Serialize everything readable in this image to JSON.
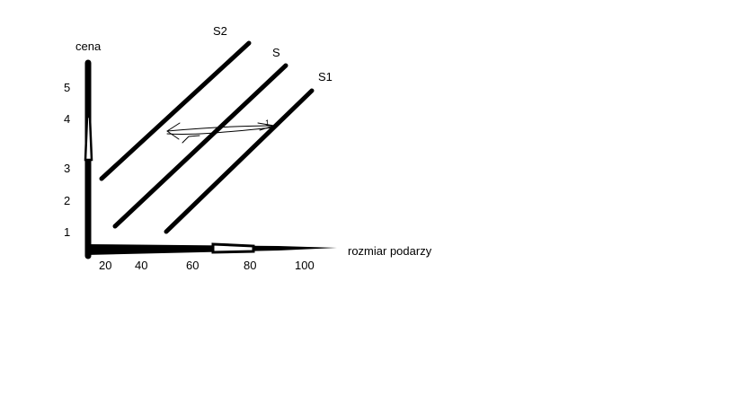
{
  "y_axis": {
    "label": "cena",
    "ticks": [
      "5",
      "4",
      "3",
      "2",
      "1"
    ]
  },
  "x_axis": {
    "label": "rozmiar podarzy",
    "ticks": [
      "20",
      "40",
      "60",
      "80",
      "100"
    ]
  },
  "curves": [
    {
      "label": "S2"
    },
    {
      "label": "S"
    },
    {
      "label": "S1"
    }
  ],
  "annotation": {
    "shift_arrow": "S1 → S2",
    "mark": "1"
  },
  "colors": {
    "ink": "#000000",
    "background": "#ffffff"
  }
}
